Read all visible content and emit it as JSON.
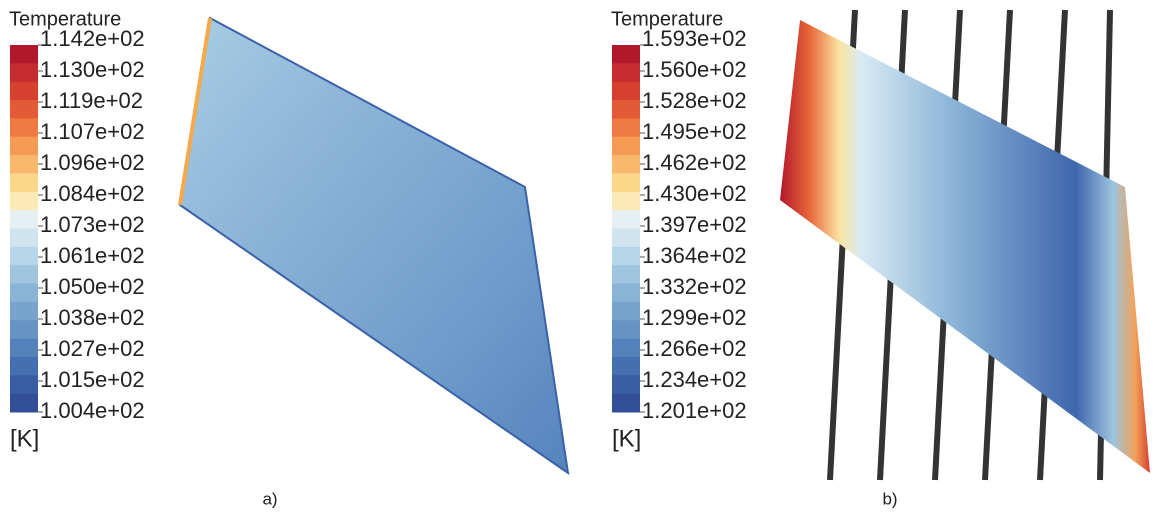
{
  "panels": [
    {
      "legend": {
        "title": "Temperature",
        "ticks": [
          "1.142e+02",
          "1.130e+02",
          "1.119e+02",
          "1.107e+02",
          "1.096e+02",
          "1.084e+02",
          "1.073e+02",
          "1.061e+02",
          "1.050e+02",
          "1.038e+02",
          "1.027e+02",
          "1.015e+02",
          "1.004e+02"
        ],
        "unit": "[K]"
      },
      "caption": "a)"
    },
    {
      "legend": {
        "title": "Temperature",
        "ticks": [
          "1.593e+02",
          "1.560e+02",
          "1.528e+02",
          "1.495e+02",
          "1.462e+02",
          "1.430e+02",
          "1.397e+02",
          "1.364e+02",
          "1.332e+02",
          "1.299e+02",
          "1.266e+02",
          "1.234e+02",
          "1.201e+02"
        ],
        "unit": "[K]"
      },
      "caption": "b)"
    }
  ]
}
